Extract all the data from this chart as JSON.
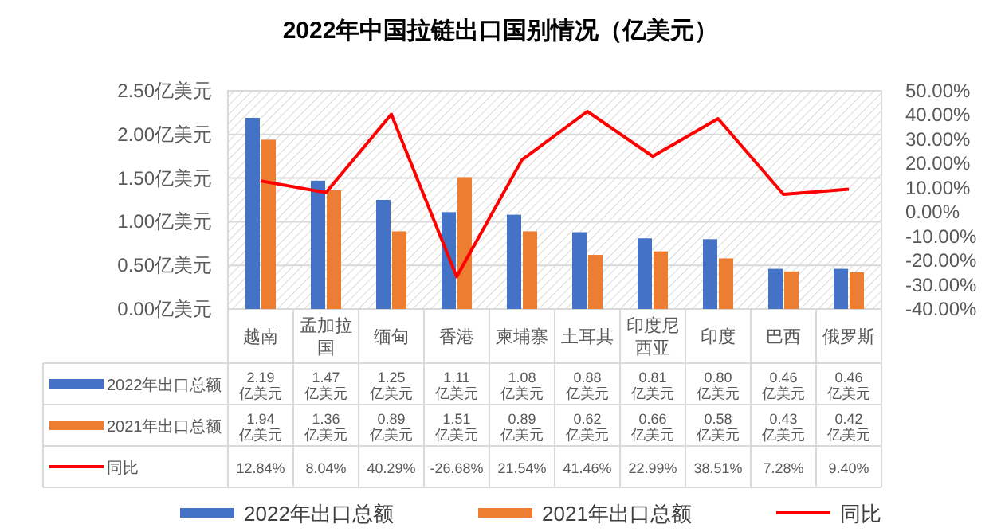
{
  "chart_data": {
    "type": "bar",
    "title": "2022年中国拉链出口国别情况（亿美元）",
    "categories": [
      "越南",
      "孟加拉国",
      "缅甸",
      "香港",
      "柬埔寨",
      "土耳其",
      "印度尼西亚",
      "印度",
      "巴西",
      "俄罗斯"
    ],
    "series": [
      {
        "name": "2022年出口总额",
        "color": "#4472c4",
        "values": [
          2.19,
          1.47,
          1.25,
          1.11,
          1.08,
          0.88,
          0.81,
          0.8,
          0.46,
          0.46
        ],
        "value_labels": [
          "2.19亿美元",
          "1.47亿美元",
          "1.25亿美元",
          "1.11亿美元",
          "1.08亿美元",
          "0.88亿美元",
          "0.81亿美元",
          "0.80亿美元",
          "0.46亿美元",
          "0.46亿美元"
        ]
      },
      {
        "name": "2021年出口总额",
        "color": "#ed7d31",
        "values": [
          1.94,
          1.36,
          0.89,
          1.51,
          0.89,
          0.62,
          0.66,
          0.58,
          0.43,
          0.42
        ],
        "value_labels": [
          "1.94亿美元",
          "1.36亿美元",
          "0.89亿美元",
          "1.51亿美元",
          "0.89亿美元",
          "0.62亿美元",
          "0.66亿美元",
          "0.58亿美元",
          "0.43亿美元",
          "0.42亿美元"
        ]
      },
      {
        "name": "同比",
        "type": "line",
        "axis": "y2",
        "color": "#ff0000",
        "values": [
          12.84,
          8.04,
          40.29,
          -26.68,
          21.54,
          41.46,
          22.99,
          38.51,
          7.28,
          9.4
        ],
        "value_labels": [
          "12.84%",
          "8.04%",
          "40.29%",
          "-26.68%",
          "21.54%",
          "41.46%",
          "22.99%",
          "38.51%",
          "7.28%",
          "9.40%"
        ]
      }
    ],
    "ylim": [
      0,
      2.5
    ],
    "yticks": [
      {
        "value": 0,
        "label": "0.00亿美元"
      },
      {
        "value": 0.5,
        "label": "0.50亿美元"
      },
      {
        "value": 1,
        "label": "1.00亿美元"
      },
      {
        "value": 1.5,
        "label": "1.50亿美元"
      },
      {
        "value": 2,
        "label": "2.00亿美元"
      },
      {
        "value": 2.5,
        "label": "2.50亿美元"
      }
    ],
    "y2lim": [
      -40,
      50
    ],
    "y2ticks": [
      {
        "value": 50,
        "label": "50.00%"
      },
      {
        "value": 40,
        "label": "40.00%"
      },
      {
        "value": 30,
        "label": "30.00%"
      },
      {
        "value": 20,
        "label": "20.00%"
      },
      {
        "value": 10,
        "label": "10.00%"
      },
      {
        "value": 0,
        "label": "0.00%"
      },
      {
        "value": -10,
        "label": "-10.00%"
      },
      {
        "value": -20,
        "label": "-20.00%"
      },
      {
        "value": -30,
        "label": "-30.00%"
      },
      {
        "value": -40,
        "label": "-40.00%"
      }
    ],
    "grid": "y",
    "legend": "bottom"
  }
}
